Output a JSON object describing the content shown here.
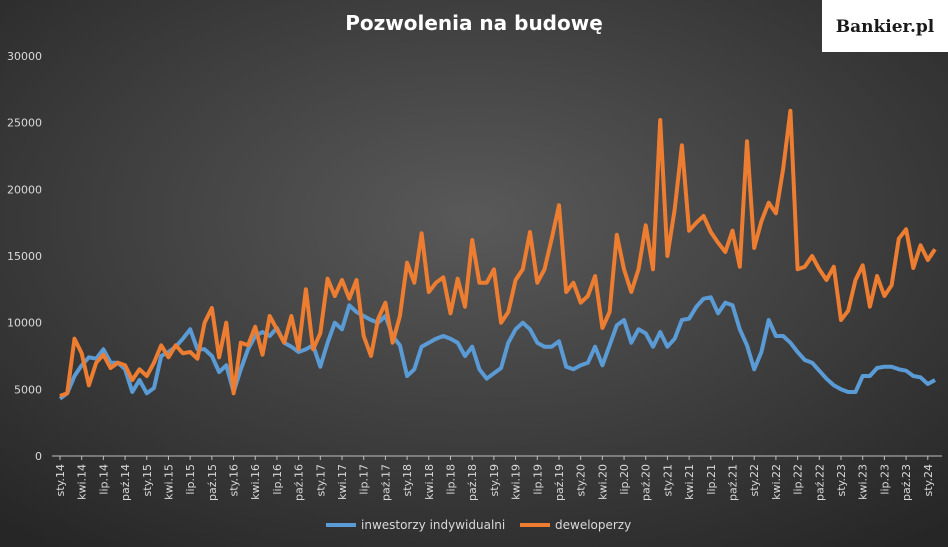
{
  "logo": "Bankier.pl",
  "chart_data": {
    "type": "line",
    "title": "Pozwolenia na budowę",
    "categories": [
      "sty.14",
      null,
      null,
      "kwi.14",
      null,
      null,
      "lip.14",
      null,
      null,
      "paź.14",
      null,
      null,
      "sty.15",
      null,
      null,
      "kwi.15",
      null,
      null,
      "lip.15",
      null,
      null,
      "paź.15",
      null,
      null,
      "sty.16",
      null,
      null,
      "kwi.16",
      null,
      null,
      "lip.16",
      null,
      null,
      "paź.16",
      null,
      null,
      "sty.17",
      null,
      null,
      "kwi.17",
      null,
      null,
      "lip.17",
      null,
      null,
      "paź.17",
      null,
      null,
      "sty.18",
      null,
      null,
      "kwi.18",
      null,
      null,
      "lip.18",
      null,
      null,
      "paź.18",
      null,
      null,
      "sty.19",
      null,
      null,
      "kwi.19",
      null,
      null,
      "lip.19",
      null,
      null,
      "paź.19",
      null,
      null,
      "sty.20",
      null,
      null,
      "kwi.20",
      null,
      null,
      "lip.20",
      null,
      null,
      "paź.20",
      null,
      null,
      "sty.21",
      null,
      null,
      "kwi.21",
      null,
      null,
      "lip.21",
      null,
      null,
      "paź.21",
      null,
      null,
      "sty.22",
      null,
      null,
      "kwi.22",
      null,
      null,
      "lip.22",
      null,
      null,
      "paź.22",
      null,
      null,
      "sty.23",
      null,
      null,
      "kwi.23",
      null,
      null,
      "lip.23",
      null,
      null,
      "paź.23",
      null,
      null,
      "sty.24",
      null
    ],
    "series": [
      {
        "name": "inwestorzy indywidualni",
        "color": "#5b9bd5",
        "values": [
          4300,
          4700,
          6000,
          6800,
          7400,
          7300,
          8000,
          7000,
          7000,
          6500,
          4800,
          5700,
          4700,
          5100,
          7500,
          7800,
          8200,
          8800,
          9500,
          8000,
          8000,
          7500,
          6300,
          6800,
          4800,
          6500,
          8000,
          9000,
          9300,
          9000,
          9600,
          8500,
          8200,
          7800,
          8000,
          8300,
          6700,
          8500,
          10000,
          9500,
          11300,
          10800,
          10500,
          10200,
          10000,
          10500,
          9000,
          8300,
          6000,
          6500,
          8200,
          8500,
          8800,
          9000,
          8800,
          8500,
          7500,
          8200,
          6500,
          5800,
          6200,
          6600,
          8500,
          9500,
          10000,
          9500,
          8500,
          8200,
          8200,
          8600,
          6700,
          6500,
          6800,
          7000,
          8200,
          6800,
          8300,
          9800,
          10200,
          8500,
          9500,
          9200,
          8200,
          9300,
          8200,
          8800,
          10200,
          10300,
          11200,
          11800,
          11900,
          10700,
          11500,
          11300,
          9500,
          8300,
          6500,
          7800,
          10200,
          9000,
          9000,
          8500,
          7800,
          7200,
          7000,
          6400,
          5800,
          5300,
          5000,
          4800,
          4800,
          6000,
          6000,
          6600,
          6700,
          6700,
          6500,
          6400,
          6000,
          5900,
          5400,
          5700
        ]
      },
      {
        "name": "deweloperzy",
        "color": "#ed7d31",
        "values": [
          4500,
          4700,
          8800,
          7700,
          5300,
          7000,
          7600,
          6600,
          7000,
          6800,
          5700,
          6500,
          6000,
          7000,
          8300,
          7400,
          8300,
          7700,
          7800,
          7300,
          10000,
          11100,
          7400,
          10000,
          4700,
          8500,
          8300,
          9700,
          7600,
          10500,
          9500,
          8500,
          10500,
          8000,
          12500,
          8000,
          9200,
          13300,
          12000,
          13200,
          11800,
          13200,
          9000,
          7500,
          10300,
          11500,
          8500,
          10500,
          14500,
          13000,
          16700,
          12300,
          13000,
          13400,
          10700,
          13300,
          11200,
          16200,
          13000,
          13000,
          14000,
          10000,
          10800,
          13200,
          14000,
          16800,
          13000,
          14000,
          16300,
          18800,
          12300,
          13000,
          11500,
          12000,
          13500,
          9600,
          10800,
          16600,
          14000,
          12300,
          14000,
          17300,
          14000,
          25200,
          15000,
          18500,
          23300,
          16900,
          17500,
          18000,
          16800,
          16000,
          15300,
          16900,
          14200,
          23600,
          15600,
          17600,
          19000,
          18200,
          21500,
          25900,
          14000,
          14200,
          15000,
          14000,
          13200,
          14200,
          10200,
          10900,
          13200,
          14300,
          11200,
          13500,
          12000,
          12800,
          16300,
          17000,
          14100,
          15800,
          14700,
          15500
        ]
      }
    ],
    "ylim": [
      0,
      30000
    ],
    "yticks": [
      0,
      5000,
      10000,
      15000,
      20000,
      25000,
      30000
    ],
    "legend": "bottom"
  }
}
